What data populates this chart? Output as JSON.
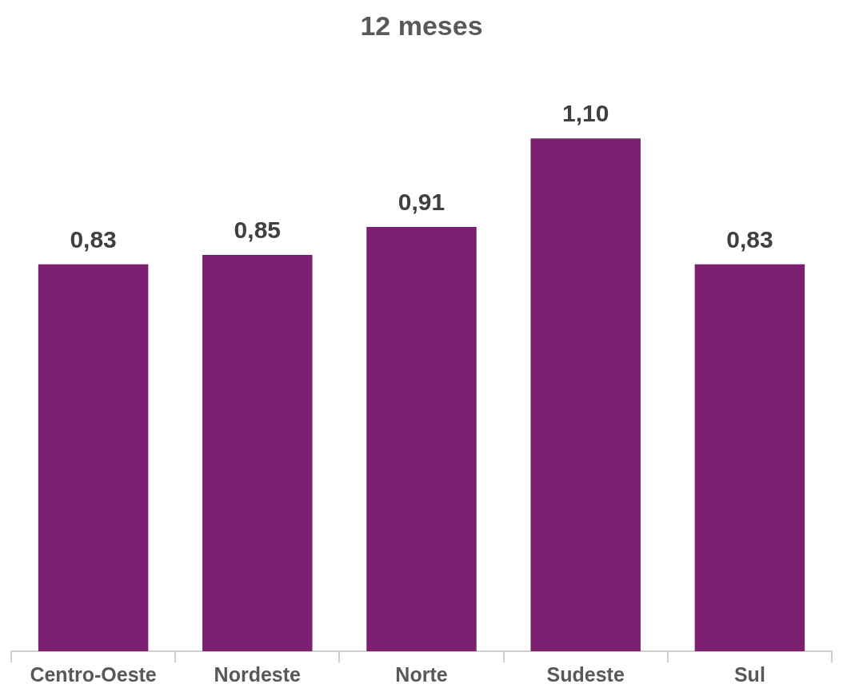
{
  "chart_data": {
    "type": "bar",
    "title": "12 meses",
    "categories": [
      "Centro-Oeste",
      "Nordeste",
      "Norte",
      "Sudeste",
      "Sul"
    ],
    "values": [
      0.83,
      0.85,
      0.91,
      1.1,
      0.83
    ],
    "value_labels": [
      "0,83",
      "0,85",
      "0,91",
      "1,10",
      "0,83"
    ],
    "color": "#7b2070"
  }
}
